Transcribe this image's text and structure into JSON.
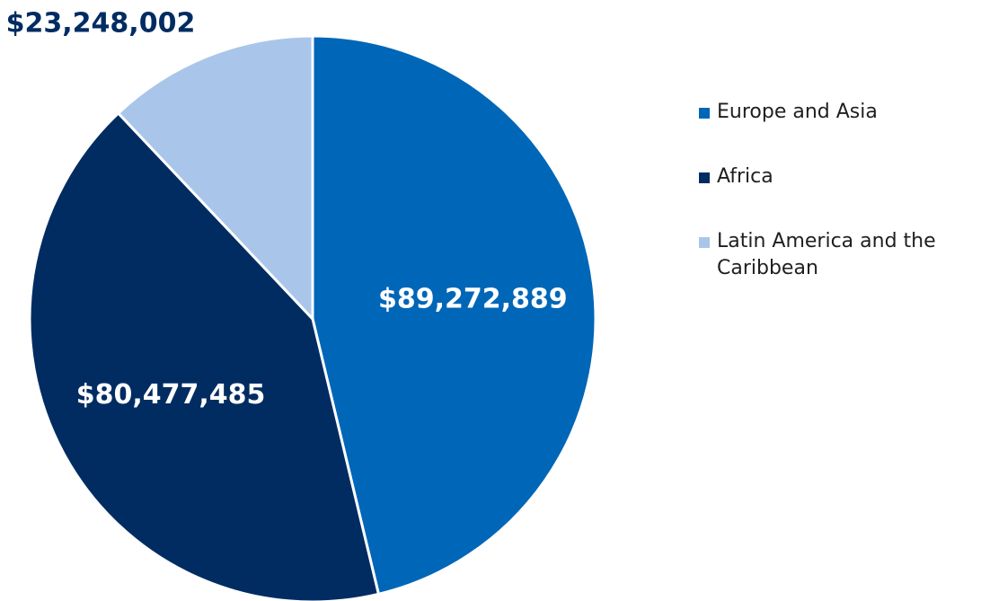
{
  "chart_data": {
    "type": "pie",
    "categories": [
      "Europe and Asia",
      "Africa",
      "Latin America and the Caribbean"
    ],
    "values": [
      89272889,
      80477485,
      23248002
    ],
    "value_labels": [
      "$89,272,889",
      "$80,477,485",
      "$23,248,002"
    ],
    "colors": [
      "#0066b8",
      "#002c62",
      "#a9c6ea"
    ],
    "legend": "right"
  }
}
